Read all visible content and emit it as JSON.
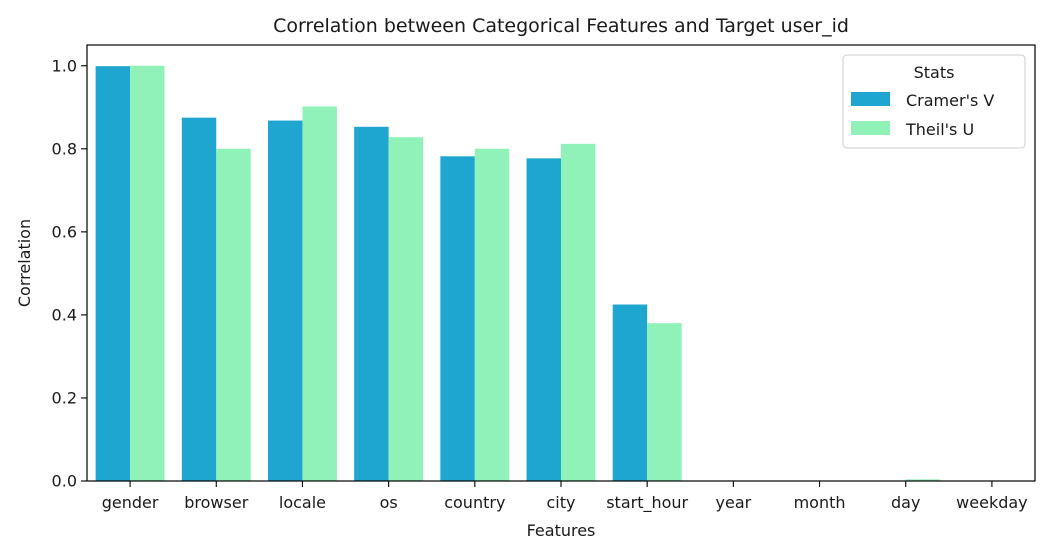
{
  "chart_data": {
    "type": "bar",
    "title": "Correlation between Categorical Features and Target user_id",
    "xlabel": "Features",
    "ylabel": "Correlation",
    "ylim": [
      0,
      1.05
    ],
    "yticks": [
      "0.0",
      "0.2",
      "0.4",
      "0.6",
      "0.8",
      "1.0"
    ],
    "grid": false,
    "categories": [
      "gender",
      "browser",
      "locale",
      "os",
      "country",
      "city",
      "start_hour",
      "year",
      "month",
      "day",
      "weekday"
    ],
    "series": [
      {
        "name": "Cramer's V",
        "color": "#1fa6d0",
        "values": [
          0.999,
          0.875,
          0.868,
          0.853,
          0.782,
          0.777,
          0.425,
          0.0,
          0.0,
          0.0,
          0.0
        ]
      },
      {
        "name": "Theil's U",
        "color": "#90f2b8",
        "values": [
          1.0,
          0.8,
          0.902,
          0.828,
          0.8,
          0.812,
          0.38,
          0.0,
          0.0,
          0.004,
          0.0
        ]
      }
    ],
    "legend": {
      "title": "Stats",
      "placement": "top-right"
    }
  }
}
